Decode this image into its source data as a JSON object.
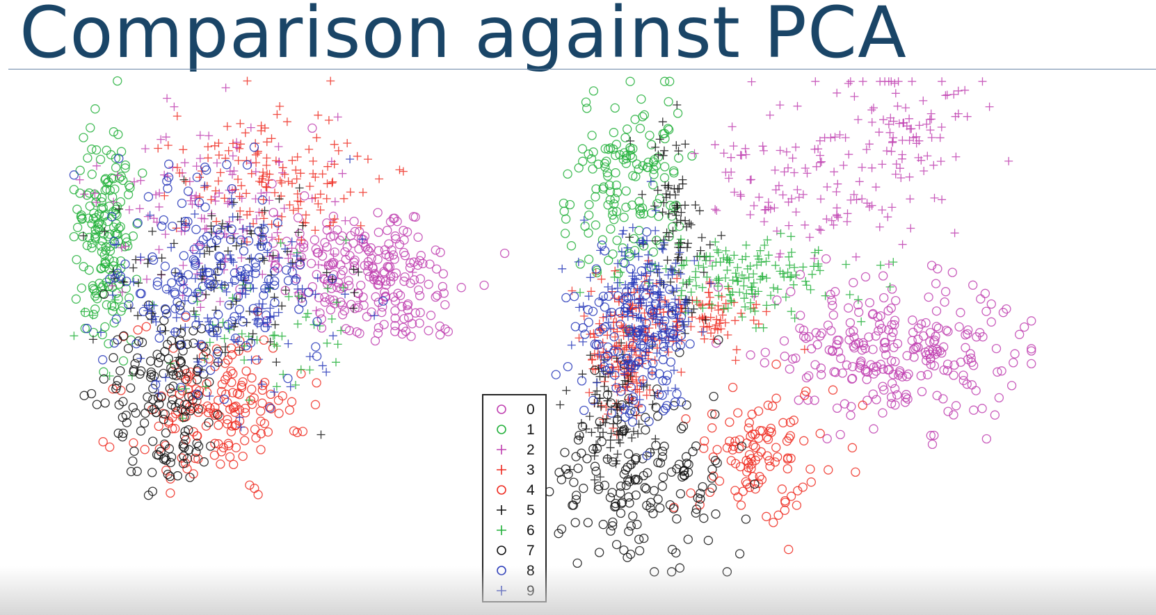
{
  "slide": {
    "title": "Comparison against PCA"
  },
  "legend": {
    "items": [
      {
        "label": "0",
        "marker": "circle",
        "color": "#c040b0"
      },
      {
        "label": "1",
        "marker": "circle",
        "color": "#22b03a"
      },
      {
        "label": "2",
        "marker": "plus",
        "color": "#c040b0"
      },
      {
        "label": "3",
        "marker": "plus",
        "color": "#ee2a20"
      },
      {
        "label": "4",
        "marker": "circle",
        "color": "#ee2a20"
      },
      {
        "label": "5",
        "marker": "plus",
        "color": "#111111"
      },
      {
        "label": "6",
        "marker": "plus",
        "color": "#22b03a"
      },
      {
        "label": "7",
        "marker": "circle",
        "color": "#111111"
      },
      {
        "label": "8",
        "marker": "circle",
        "color": "#2436b8"
      },
      {
        "label": "9",
        "marker": "plus",
        "color": "#2436b8"
      }
    ]
  },
  "chart_data": [
    {
      "type": "scatter",
      "panel": "left",
      "axes_visible": false,
      "series": [
        {
          "name": "0",
          "marker": "circle",
          "color": "#c040b0",
          "clusters": [
            [
              0.7,
              0.45,
              0.1,
              0.08,
              180
            ],
            [
              0.58,
              0.4,
              0.08,
              0.07,
              60
            ]
          ]
        },
        {
          "name": "1",
          "marker": "circle",
          "color": "#22b03a",
          "clusters": [
            [
              0.08,
              0.35,
              0.03,
              0.12,
              170
            ]
          ]
        },
        {
          "name": "2",
          "marker": "plus",
          "color": "#c040b0",
          "clusters": [
            [
              0.35,
              0.3,
              0.14,
              0.1,
              140
            ]
          ]
        },
        {
          "name": "3",
          "marker": "plus",
          "color": "#ee2a20",
          "clusters": [
            [
              0.45,
              0.22,
              0.1,
              0.07,
              140
            ]
          ]
        },
        {
          "name": "4",
          "marker": "circle",
          "color": "#ee2a20",
          "clusters": [
            [
              0.33,
              0.73,
              0.1,
              0.08,
              170
            ]
          ]
        },
        {
          "name": "5",
          "marker": "plus",
          "color": "#111111",
          "clusters": [
            [
              0.35,
              0.45,
              0.13,
              0.1,
              110
            ]
          ]
        },
        {
          "name": "6",
          "marker": "plus",
          "color": "#22b03a",
          "clusters": [
            [
              0.42,
              0.55,
              0.14,
              0.1,
              60
            ]
          ]
        },
        {
          "name": "7",
          "marker": "circle",
          "color": "#111111",
          "clusters": [
            [
              0.22,
              0.72,
              0.07,
              0.1,
              150
            ]
          ]
        },
        {
          "name": "8",
          "marker": "circle",
          "color": "#2436b8",
          "clusters": [
            [
              0.32,
              0.45,
              0.12,
              0.11,
              170
            ]
          ]
        },
        {
          "name": "9",
          "marker": "plus",
          "color": "#2436b8",
          "clusters": [
            [
              0.36,
              0.5,
              0.13,
              0.11,
              120
            ]
          ]
        }
      ]
    },
    {
      "type": "scatter",
      "panel": "right",
      "axes_visible": false,
      "series": [
        {
          "name": "0",
          "marker": "circle",
          "color": "#c040b0",
          "clusters": [
            [
              0.72,
              0.55,
              0.12,
              0.07,
              260
            ]
          ]
        },
        {
          "name": "1",
          "marker": "circle",
          "color": "#22b03a",
          "clusters": [
            [
              0.18,
              0.22,
              0.06,
              0.1,
              150
            ]
          ]
        },
        {
          "name": "2",
          "marker": "plus",
          "color": "#c040b0",
          "clusters": [
            [
              0.55,
              0.22,
              0.1,
              0.08,
              120
            ],
            [
              0.75,
              0.1,
              0.08,
              0.06,
              80
            ]
          ]
        },
        {
          "name": "3",
          "marker": "plus",
          "color": "#ee2a20",
          "clusters": [
            [
              0.18,
              0.55,
              0.04,
              0.07,
              170
            ],
            [
              0.32,
              0.48,
              0.06,
              0.03,
              90
            ]
          ]
        },
        {
          "name": "4",
          "marker": "circle",
          "color": "#ee2a20",
          "clusters": [
            [
              0.45,
              0.75,
              0.08,
              0.07,
              110
            ]
          ]
        },
        {
          "name": "5",
          "marker": "plus",
          "color": "#111111",
          "clusters": [
            [
              0.28,
              0.3,
              0.03,
              0.1,
              90
            ],
            [
              0.15,
              0.68,
              0.04,
              0.06,
              80
            ]
          ]
        },
        {
          "name": "6",
          "marker": "plus",
          "color": "#22b03a",
          "clusters": [
            [
              0.42,
              0.4,
              0.12,
              0.04,
              150
            ]
          ]
        },
        {
          "name": "7",
          "marker": "circle",
          "color": "#111111",
          "clusters": [
            [
              0.2,
              0.8,
              0.1,
              0.08,
              170
            ]
          ]
        },
        {
          "name": "8",
          "marker": "circle",
          "color": "#2436b8",
          "clusters": [
            [
              0.2,
              0.52,
              0.06,
              0.08,
              140
            ]
          ]
        },
        {
          "name": "9",
          "marker": "plus",
          "color": "#2436b8",
          "clusters": [
            [
              0.22,
              0.45,
              0.05,
              0.07,
              170
            ]
          ]
        }
      ]
    }
  ]
}
